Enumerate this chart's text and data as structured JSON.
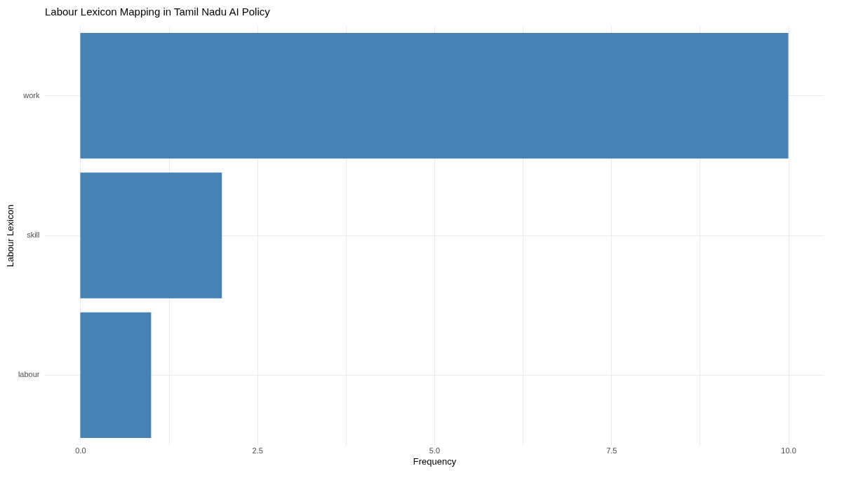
{
  "chart_data": {
    "type": "bar",
    "orientation": "horizontal",
    "title": "Labour Lexicon Mapping in Tamil Nadu AI Policy",
    "xlabel": "Frequency",
    "ylabel": "Labour Lexicon",
    "categories": [
      "work",
      "skill",
      "labour"
    ],
    "values": [
      10,
      2,
      1
    ],
    "color": "#4682b4",
    "xlim": [
      -0.5,
      10.5
    ],
    "xticks": [
      {
        "value": 0,
        "label": "0.0"
      },
      {
        "value": 1.25,
        "label": null
      },
      2.5,
      {
        "value": 3.75,
        "label": null
      },
      {
        "value": 5,
        "label": "5.0"
      },
      {
        "value": 6.25,
        "label": null
      },
      7.5,
      {
        "value": 8.75,
        "label": null
      },
      {
        "value": 10,
        "label": "10.0"
      }
    ],
    "grid": true
  }
}
